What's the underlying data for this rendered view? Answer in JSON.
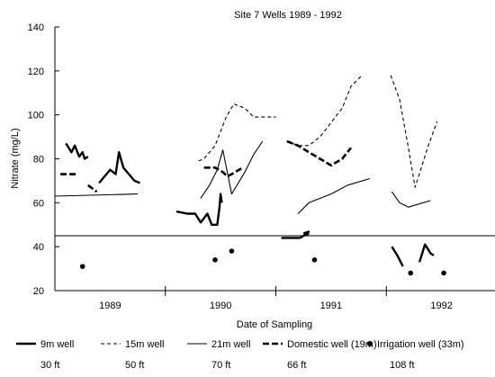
{
  "chart_data": {
    "type": "line",
    "title": "Site 7 Wells 1989 - 1992",
    "xlabel": "Date of Sampling",
    "ylabel": "Nitrate (mg/L)",
    "categories": [
      "1989",
      "1990",
      "1991",
      "1992"
    ],
    "ylim": [
      20,
      140
    ],
    "yticks": [
      20,
      40,
      60,
      80,
      100,
      120,
      140
    ],
    "reference_lines": [
      45
    ],
    "grid": false,
    "legend_position": "bottom",
    "series": [
      {
        "name": "9m well",
        "depth_label": "30 ft",
        "style": "thick-solid",
        "segments": [
          [
            [
              1.1,
              87
            ],
            [
              1.15,
              83
            ],
            [
              1.18,
              86
            ],
            [
              1.22,
              81
            ],
            [
              1.25,
              83
            ],
            [
              1.27,
              80
            ],
            [
              1.3,
              81
            ]
          ],
          [
            [
              1.4,
              69
            ],
            [
              1.45,
              72
            ],
            [
              1.5,
              75
            ],
            [
              1.55,
              73
            ],
            [
              1.58,
              83
            ],
            [
              1.62,
              76
            ],
            [
              1.67,
              73
            ],
            [
              1.72,
              70
            ],
            [
              1.77,
              69
            ]
          ],
          [
            [
              2.1,
              56
            ],
            [
              2.2,
              55
            ],
            [
              2.27,
              55
            ],
            [
              2.32,
              51
            ],
            [
              2.38,
              55
            ],
            [
              2.42,
              50
            ],
            [
              2.47,
              50
            ],
            [
              2.49,
              58
            ],
            [
              2.5,
              64
            ],
            [
              2.51,
              60
            ]
          ],
          [
            [
              3.05,
              44
            ],
            [
              3.15,
              44
            ],
            [
              3.22,
              44
            ],
            [
              3.25,
              45
            ],
            [
              3.3,
              46
            ]
          ],
          [
            [
              4.05,
              40
            ],
            [
              4.1,
              36
            ],
            [
              4.15,
              31
            ]
          ],
          [
            [
              4.3,
              33
            ],
            [
              4.35,
              41
            ],
            [
              4.4,
              37
            ],
            [
              4.43,
              36
            ]
          ]
        ]
      },
      {
        "name": "15m well",
        "depth_label": "50 ft",
        "style": "dashed",
        "segments": [
          [
            [
              2.3,
              79
            ],
            [
              2.35,
              80
            ],
            [
              2.45,
              86
            ],
            [
              2.55,
              99
            ],
            [
              2.62,
              105
            ],
            [
              2.72,
              103
            ],
            [
              2.8,
              99
            ],
            [
              3.0,
              99
            ]
          ],
          [
            [
              3.1,
              88
            ],
            [
              3.2,
              86
            ],
            [
              3.3,
              86
            ],
            [
              3.4,
              90
            ],
            [
              3.6,
              103
            ],
            [
              3.68,
              113
            ],
            [
              3.78,
              118
            ]
          ],
          [
            [
              4.04,
              118
            ],
            [
              4.12,
              107
            ],
            [
              4.2,
              85
            ],
            [
              4.26,
              67
            ],
            [
              4.38,
              86
            ],
            [
              4.46,
              97
            ]
          ]
        ]
      },
      {
        "name": "21m well",
        "depth_label": "70 ft",
        "style": "thin-solid",
        "segments": [
          [
            [
              1.0,
              63
            ],
            [
              1.75,
              64
            ]
          ],
          [
            [
              2.32,
              62
            ],
            [
              2.4,
              68
            ],
            [
              2.47,
              75
            ],
            [
              2.52,
              84
            ],
            [
              2.6,
              64
            ],
            [
              2.72,
              74
            ],
            [
              2.8,
              82
            ],
            [
              2.88,
              88
            ]
          ],
          [
            [
              3.2,
              55
            ],
            [
              3.3,
              60
            ],
            [
              3.5,
              64
            ],
            [
              3.65,
              68
            ],
            [
              3.85,
              71
            ]
          ],
          [
            [
              4.05,
              65
            ],
            [
              4.12,
              60
            ],
            [
              4.2,
              58
            ],
            [
              4.4,
              61
            ]
          ]
        ]
      },
      {
        "name": "Domestic well (19m)",
        "depth_label": "66 ft",
        "style": "thick-dashed",
        "segments": [
          [
            [
              1.05,
              73
            ],
            [
              1.2,
              73
            ]
          ],
          [
            [
              1.3,
              68
            ],
            [
              1.38,
              65
            ]
          ],
          [
            [
              2.35,
              76
            ],
            [
              2.45,
              76
            ],
            [
              2.52,
              74
            ],
            [
              2.56,
              72
            ],
            [
              2.6,
              73
            ],
            [
              2.7,
              76
            ]
          ],
          [
            [
              3.1,
              88
            ],
            [
              3.2,
              86
            ],
            [
              3.3,
              83
            ],
            [
              3.4,
              80
            ],
            [
              3.5,
              77
            ],
            [
              3.6,
              80
            ],
            [
              3.68,
              85
            ]
          ],
          [
            [
              3.25,
              46
            ],
            [
              3.31,
              47
            ]
          ]
        ]
      },
      {
        "name": "Irrigation well (33m)",
        "depth_label": "108 ft",
        "style": "dots",
        "points": [
          [
            1.25,
            31
          ],
          [
            2.45,
            34
          ],
          [
            2.6,
            38
          ],
          [
            3.35,
            34
          ],
          [
            4.22,
            28
          ],
          [
            4.52,
            28
          ]
        ]
      }
    ]
  }
}
